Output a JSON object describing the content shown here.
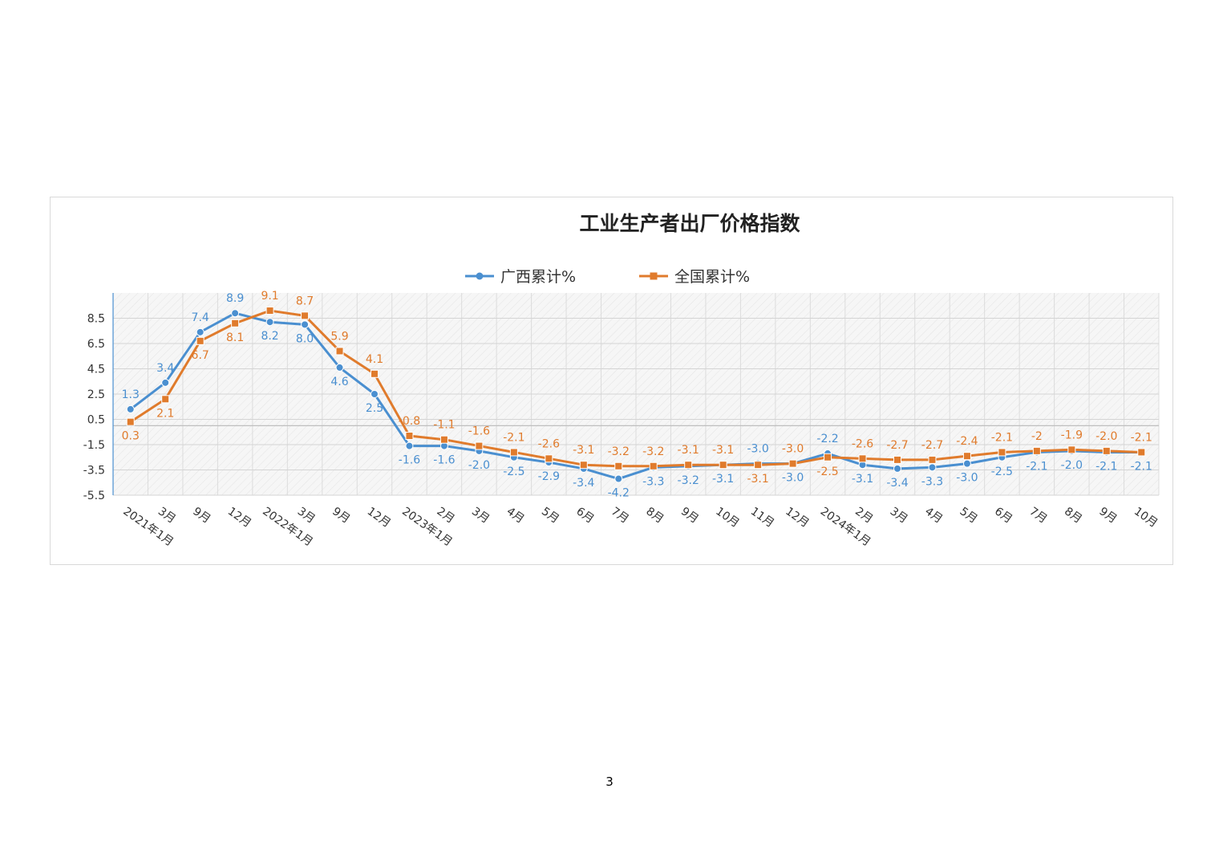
{
  "page": {
    "number": "3"
  },
  "chart_data": {
    "type": "line",
    "title": "工业生产者出厂价格指数",
    "xlabel": "",
    "ylabel": "",
    "ylim": [
      -5.5,
      10.5
    ],
    "yticks": [
      "8.5",
      "6.5",
      "4.5",
      "2.5",
      "0.5",
      "-1.5",
      "-3.5",
      "-5.5"
    ],
    "legend_position": "top-center",
    "grid": true,
    "categories": [
      "2021年1月",
      "3月",
      "9月",
      "12月",
      "2022年1月",
      "3月",
      "9月",
      "12月",
      "2023年1月",
      "2月",
      "3月",
      "4月",
      "5月",
      "6月",
      "7月",
      "8月",
      "9月",
      "10月",
      "11月",
      "12月",
      "2024年1月",
      "2月",
      "3月",
      "4月",
      "5月",
      "6月",
      "7月",
      "8月",
      "9月",
      "10月"
    ],
    "series": [
      {
        "name": "广西累计%",
        "color": "#4a8fd0",
        "marker": "circle",
        "values": [
          1.3,
          3.4,
          7.4,
          8.9,
          8.2,
          8.0,
          4.6,
          2.5,
          -1.6,
          -1.6,
          -2.0,
          -2.5,
          -2.9,
          -3.4,
          -4.2,
          -3.3,
          -3.2,
          -3.1,
          -3.0,
          -3.0,
          -2.2,
          -3.1,
          -3.4,
          -3.3,
          -3.0,
          -2.5,
          -2.1,
          -2.0,
          -2.1,
          -2.1
        ],
        "labels": [
          "1.3",
          "3.4",
          "7.4",
          "8.9",
          "8.2",
          "8.0",
          "4.6",
          "2.5",
          "-1.6",
          "-1.6",
          "-2.0",
          "-2.5",
          "-2.9",
          "-3.4",
          "-4.2",
          "-3.3",
          "-3.2",
          "-3.1",
          "-3.0",
          "-3.0",
          "-2.2",
          "-3.1",
          "-3.4",
          "-3.3",
          "-3.0",
          "-2.5",
          "-2.1",
          "-2.0",
          "-2.1",
          "-2.1"
        ]
      },
      {
        "name": "全国累计%",
        "color": "#e07b2c",
        "marker": "square",
        "values": [
          0.3,
          2.1,
          6.7,
          8.1,
          9.1,
          8.7,
          5.9,
          4.1,
          -0.8,
          -1.1,
          -1.6,
          -2.1,
          -2.6,
          -3.1,
          -3.2,
          -3.2,
          -3.1,
          -3.1,
          -3.1,
          -3.0,
          -2.5,
          -2.6,
          -2.7,
          -2.7,
          -2.4,
          -2.1,
          -2.0,
          -1.9,
          -2.0,
          -2.1
        ],
        "labels": [
          "0.3",
          "2.1",
          "6.7",
          "8.1",
          "9.1",
          "8.7",
          "5.9",
          "4.1",
          "-0.8",
          "-1.1",
          "-1.6",
          "-2.1",
          "-2.6",
          "-3.1",
          "-3.2",
          "-3.2",
          "-3.1",
          "-3.1",
          "-3.1",
          "-3.0",
          "-2.5",
          "-2.6",
          "-2.7",
          "-2.7",
          "-2.4",
          "-2.1",
          "-2",
          "-1.9",
          "-2.0",
          "-2.1"
        ]
      }
    ]
  }
}
